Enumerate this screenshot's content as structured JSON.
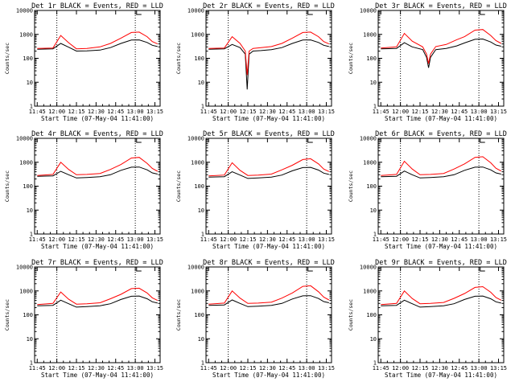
{
  "colors": {
    "events": "#000000",
    "lld": "#ff0000",
    "axis": "#000000",
    "background": "#ffffff"
  },
  "chart_data": {
    "type": "line",
    "scale_y": "log",
    "grid": false,
    "xlabel": "Start Time (07-May-04 11:41:00)",
    "ylabel": "Counts/sec",
    "x_ticks": [
      "11:45",
      "12:00",
      "12:15",
      "12:30",
      "12:45",
      "13:00",
      "13:15"
    ],
    "x_ticks_minutes": [
      0,
      15,
      30,
      45,
      60,
      75,
      90
    ],
    "x_range_minutes": [
      -2,
      94
    ],
    "y_ticks": [
      "1",
      "10",
      "100",
      "1000",
      "10000"
    ],
    "ylim": [
      1,
      10000
    ],
    "vlines_minutes": [
      15,
      75
    ],
    "panels": [
      {
        "title": "Det 1r BLACK = Events, RED = LLD",
        "series": [
          {
            "name": "Events",
            "x": [
              0,
              12,
              18,
              24,
              30,
              38,
              48,
              56,
              64,
              72,
              78,
              84,
              88,
              92
            ],
            "y": [
              240,
              250,
              420,
              290,
              200,
              205,
              220,
              280,
              420,
              580,
              590,
              460,
              350,
              310
            ]
          },
          {
            "name": "LLD",
            "x": [
              0,
              12,
              18,
              24,
              30,
              38,
              48,
              56,
              64,
              72,
              78,
              84,
              88,
              92
            ],
            "y": [
              260,
              270,
              900,
              450,
              250,
              260,
              300,
              420,
              700,
              1200,
              1250,
              800,
              500,
              400
            ]
          }
        ]
      },
      {
        "title": "Det 2r BLACK = Events, RED = LLD",
        "series": [
          {
            "name": "Events",
            "x": [
              0,
              12,
              18,
              24,
              28,
              29.5,
              31,
              34,
              40,
              48,
              56,
              64,
              72,
              78,
              84,
              88,
              92
            ],
            "y": [
              240,
              250,
              380,
              280,
              150,
              5,
              150,
              200,
              210,
              230,
              280,
              420,
              580,
              590,
              460,
              350,
              310
            ]
          },
          {
            "name": "LLD",
            "x": [
              0,
              12,
              18,
              24,
              28,
              29.5,
              31,
              34,
              40,
              48,
              56,
              64,
              72,
              78,
              84,
              88,
              92
            ],
            "y": [
              260,
              270,
              800,
              420,
              200,
              20,
              200,
              260,
              280,
              310,
              420,
              700,
              1200,
              1250,
              800,
              500,
              400
            ]
          }
        ]
      },
      {
        "title": "Det 3r BLACK = Events, RED = LLD",
        "series": [
          {
            "name": "Events",
            "x": [
              0,
              12,
              18,
              24,
              32,
              35,
              36.5,
              38,
              42,
              50,
              58,
              64,
              72,
              78,
              84,
              88,
              92
            ],
            "y": [
              250,
              260,
              450,
              300,
              230,
              110,
              40,
              110,
              230,
              260,
              330,
              440,
              620,
              640,
              480,
              360,
              320
            ]
          },
          {
            "name": "LLD",
            "x": [
              0,
              12,
              18,
              24,
              32,
              35,
              36.5,
              38,
              42,
              50,
              58,
              64,
              72,
              78,
              84,
              88,
              92
            ],
            "y": [
              270,
              300,
              1100,
              520,
              300,
              150,
              60,
              150,
              310,
              380,
              600,
              800,
              1500,
              1600,
              900,
              550,
              420
            ]
          }
        ]
      },
      {
        "title": "Det 4r BLACK = Events, RED = LLD",
        "series": [
          {
            "name": "Events",
            "x": [
              0,
              12,
              18,
              24,
              30,
              38,
              48,
              56,
              64,
              72,
              78,
              84,
              88,
              92
            ],
            "y": [
              260,
              270,
              420,
              300,
              220,
              230,
              250,
              300,
              460,
              620,
              630,
              480,
              360,
              320
            ]
          },
          {
            "name": "LLD",
            "x": [
              0,
              12,
              18,
              24,
              30,
              38,
              48,
              56,
              64,
              72,
              78,
              84,
              88,
              92
            ],
            "y": [
              280,
              310,
              1000,
              500,
              300,
              310,
              340,
              500,
              800,
              1500,
              1600,
              900,
              550,
              420
            ]
          }
        ]
      },
      {
        "title": "Det 5r BLACK = Events, RED = LLD",
        "series": [
          {
            "name": "Events",
            "x": [
              0,
              12,
              18,
              24,
              30,
              38,
              48,
              56,
              64,
              72,
              78,
              84,
              88,
              92
            ],
            "y": [
              240,
              250,
              400,
              290,
              210,
              220,
              240,
              290,
              440,
              600,
              610,
              470,
              350,
              310
            ]
          },
          {
            "name": "LLD",
            "x": [
              0,
              12,
              18,
              24,
              30,
              38,
              48,
              56,
              64,
              72,
              78,
              84,
              88,
              92
            ],
            "y": [
              270,
              290,
              950,
              460,
              280,
              290,
              320,
              480,
              750,
              1300,
              1400,
              850,
              520,
              410
            ]
          }
        ]
      },
      {
        "title": "Det 6r BLACK = Events, RED = LLD",
        "series": [
          {
            "name": "Events",
            "x": [
              0,
              12,
              18,
              24,
              30,
              38,
              48,
              56,
              64,
              72,
              78,
              84,
              88,
              92
            ],
            "y": [
              250,
              260,
              430,
              300,
              220,
              230,
              250,
              300,
              460,
              620,
              630,
              480,
              360,
              320
            ]
          },
          {
            "name": "LLD",
            "x": [
              0,
              12,
              18,
              24,
              30,
              38,
              48,
              56,
              64,
              72,
              78,
              84,
              88,
              92
            ],
            "y": [
              280,
              310,
              1100,
              520,
              300,
              310,
              340,
              520,
              850,
              1600,
              1700,
              950,
              560,
              430
            ]
          }
        ]
      },
      {
        "title": "Det 7r BLACK = Events, RED = LLD",
        "series": [
          {
            "name": "Events",
            "x": [
              0,
              12,
              18,
              24,
              30,
              38,
              48,
              56,
              64,
              72,
              78,
              84,
              88,
              92
            ],
            "y": [
              240,
              250,
              410,
              290,
              210,
              220,
              240,
              290,
              440,
              600,
              610,
              470,
              350,
              310
            ]
          },
          {
            "name": "LLD",
            "x": [
              0,
              12,
              18,
              24,
              30,
              38,
              48,
              56,
              64,
              72,
              78,
              84,
              88,
              92
            ],
            "y": [
              270,
              300,
              900,
              450,
              280,
              290,
              320,
              470,
              720,
              1250,
              1300,
              820,
              510,
              400
            ]
          }
        ]
      },
      {
        "title": "Det 8r BLACK = Events, RED = LLD",
        "series": [
          {
            "name": "Events",
            "x": [
              0,
              12,
              18,
              24,
              30,
              38,
              48,
              56,
              64,
              72,
              78,
              84,
              88,
              92
            ],
            "y": [
              250,
              260,
              420,
              300,
              220,
              230,
              250,
              300,
              460,
              620,
              630,
              480,
              360,
              320
            ]
          },
          {
            "name": "LLD",
            "x": [
              0,
              12,
              18,
              24,
              30,
              38,
              48,
              56,
              64,
              72,
              78,
              84,
              88,
              92
            ],
            "y": [
              280,
              310,
              1000,
              500,
              300,
              310,
              340,
              500,
              820,
              1550,
              1650,
              920,
              550,
              420
            ]
          }
        ]
      },
      {
        "title": "Det 9r BLACK = Events, RED = LLD",
        "series": [
          {
            "name": "Events",
            "x": [
              0,
              12,
              18,
              24,
              30,
              38,
              48,
              56,
              64,
              72,
              78,
              84,
              88,
              92
            ],
            "y": [
              240,
              250,
              410,
              290,
              210,
              220,
              240,
              290,
              440,
              600,
              610,
              470,
              350,
              310
            ]
          },
          {
            "name": "LLD",
            "x": [
              0,
              12,
              18,
              24,
              30,
              38,
              48,
              56,
              64,
              72,
              78,
              84,
              88,
              92
            ],
            "y": [
              270,
              300,
              1000,
              480,
              290,
              300,
              330,
              490,
              780,
              1400,
              1500,
              880,
              530,
              410
            ]
          }
        ]
      }
    ]
  }
}
